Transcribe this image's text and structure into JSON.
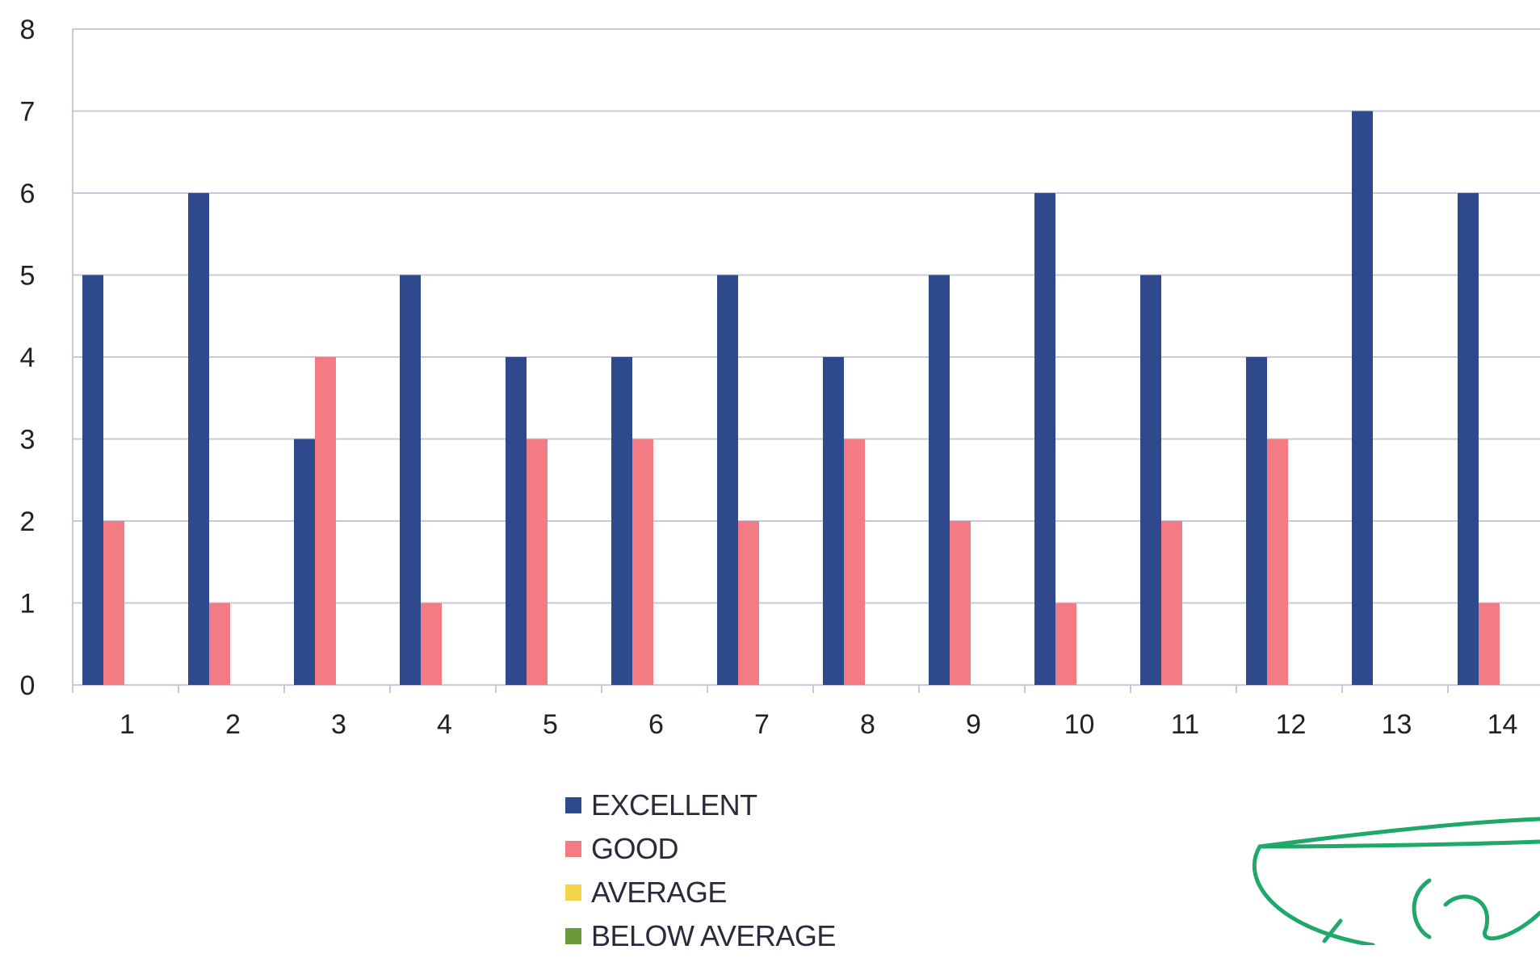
{
  "chart_data": {
    "type": "bar",
    "categories": [
      "1",
      "2",
      "3",
      "4",
      "5",
      "6",
      "7",
      "8",
      "9",
      "10",
      "11",
      "12",
      "13",
      "14"
    ],
    "series": [
      {
        "name": "EXCELLENT",
        "color": "#2f4a8c",
        "values": [
          5,
          6,
          3,
          5,
          4,
          4,
          5,
          4,
          5,
          6,
          5,
          4,
          7,
          6
        ]
      },
      {
        "name": "GOOD",
        "color": "#f27b84",
        "values": [
          2,
          1,
          4,
          1,
          3,
          3,
          2,
          3,
          2,
          1,
          2,
          3,
          0,
          1
        ]
      },
      {
        "name": "AVERAGE",
        "color": "#f3d44a",
        "values": [
          0,
          0,
          0,
          0,
          0,
          0,
          0,
          0,
          0,
          0,
          0,
          0,
          0,
          0
        ]
      },
      {
        "name": "BELOW AVERAGE",
        "color": "#6a9a3a",
        "values": [
          0,
          0,
          0,
          0,
          0,
          0,
          0,
          0,
          0,
          0,
          0,
          0,
          0,
          0
        ]
      }
    ],
    "yticks": [
      "0",
      "1",
      "2",
      "3",
      "4",
      "5",
      "6",
      "7",
      "8"
    ],
    "ylim": [
      0,
      8
    ],
    "grid": true,
    "legend_position": "bottom-center"
  },
  "signature": {
    "kind": "handwritten-signature",
    "color": "#1fa86a",
    "text": "Ja"
  }
}
